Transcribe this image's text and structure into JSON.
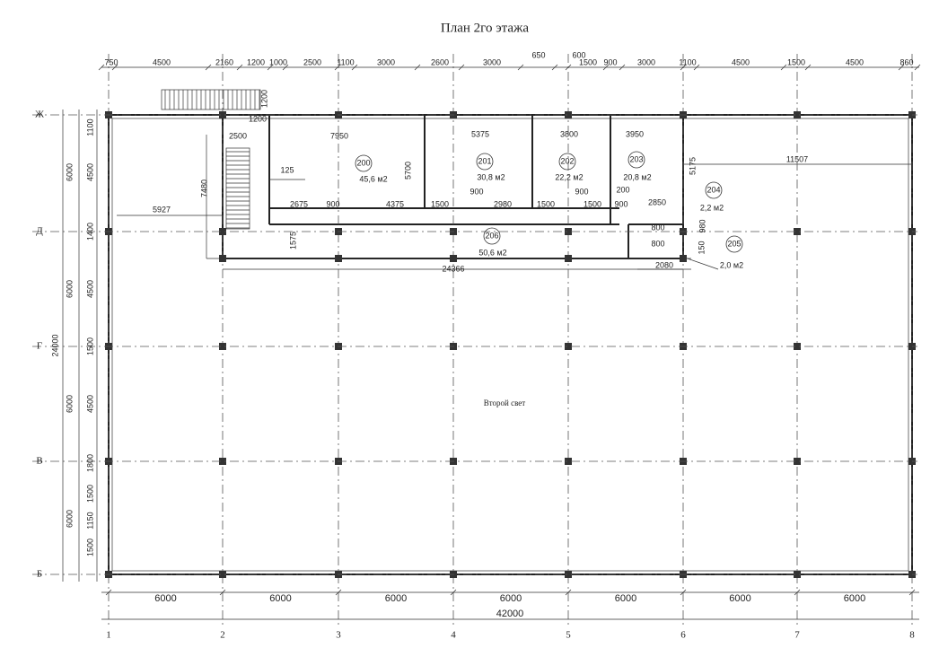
{
  "header": {
    "title": "План 2го этажа"
  },
  "axes": {
    "columns": [
      "1",
      "2",
      "3",
      "4",
      "5",
      "6",
      "7",
      "8"
    ],
    "rows": [
      "Ж",
      "Д",
      "Г",
      "В",
      "Б"
    ]
  },
  "dims": {
    "top": [
      "750",
      "4500",
      "2160",
      "1200",
      "1000",
      "2500",
      "1100",
      "3000",
      "2600",
      "3000",
      "650",
      "600",
      "1500",
      "900",
      "3000",
      "1100",
      "4500",
      "1500",
      "4500",
      "860"
    ],
    "left_outer": "24000",
    "left": [
      "6000",
      "6000",
      "6000",
      "6000"
    ],
    "left_inner": [
      "1100",
      "4500",
      "1400",
      "4500",
      "1500",
      "4500",
      "1800",
      "1500",
      "1150",
      "1500"
    ],
    "bottom": [
      "6000",
      "6000",
      "6000",
      "6000",
      "6000",
      "6000",
      "6000"
    ],
    "total": "42000",
    "internal": [
      "2500",
      "7950",
      "5375",
      "3800",
      "3950",
      "11507",
      "125",
      "5700",
      "7480",
      "5175",
      "5927",
      "2675",
      "900",
      "4375",
      "1500",
      "900",
      "2980",
      "1500",
      "900",
      "1500",
      "200",
      "900",
      "2850",
      "1575",
      "24366",
      "2080",
      "1200",
      "1200",
      "980",
      "800",
      "800",
      "150"
    ]
  },
  "rooms": [
    {
      "number": "200",
      "area": "45,6 м2"
    },
    {
      "number": "201",
      "area": "30,8 м2"
    },
    {
      "number": "202",
      "area": "22,2 м2"
    },
    {
      "number": "203",
      "area": "20,8 м2"
    },
    {
      "number": "204",
      "area": "2,2 м2"
    },
    {
      "number": "205",
      "area": "2,0 м2"
    },
    {
      "number": "206",
      "area": "50,6 м2"
    }
  ],
  "notes": {
    "second_light": "Второй свет"
  }
}
